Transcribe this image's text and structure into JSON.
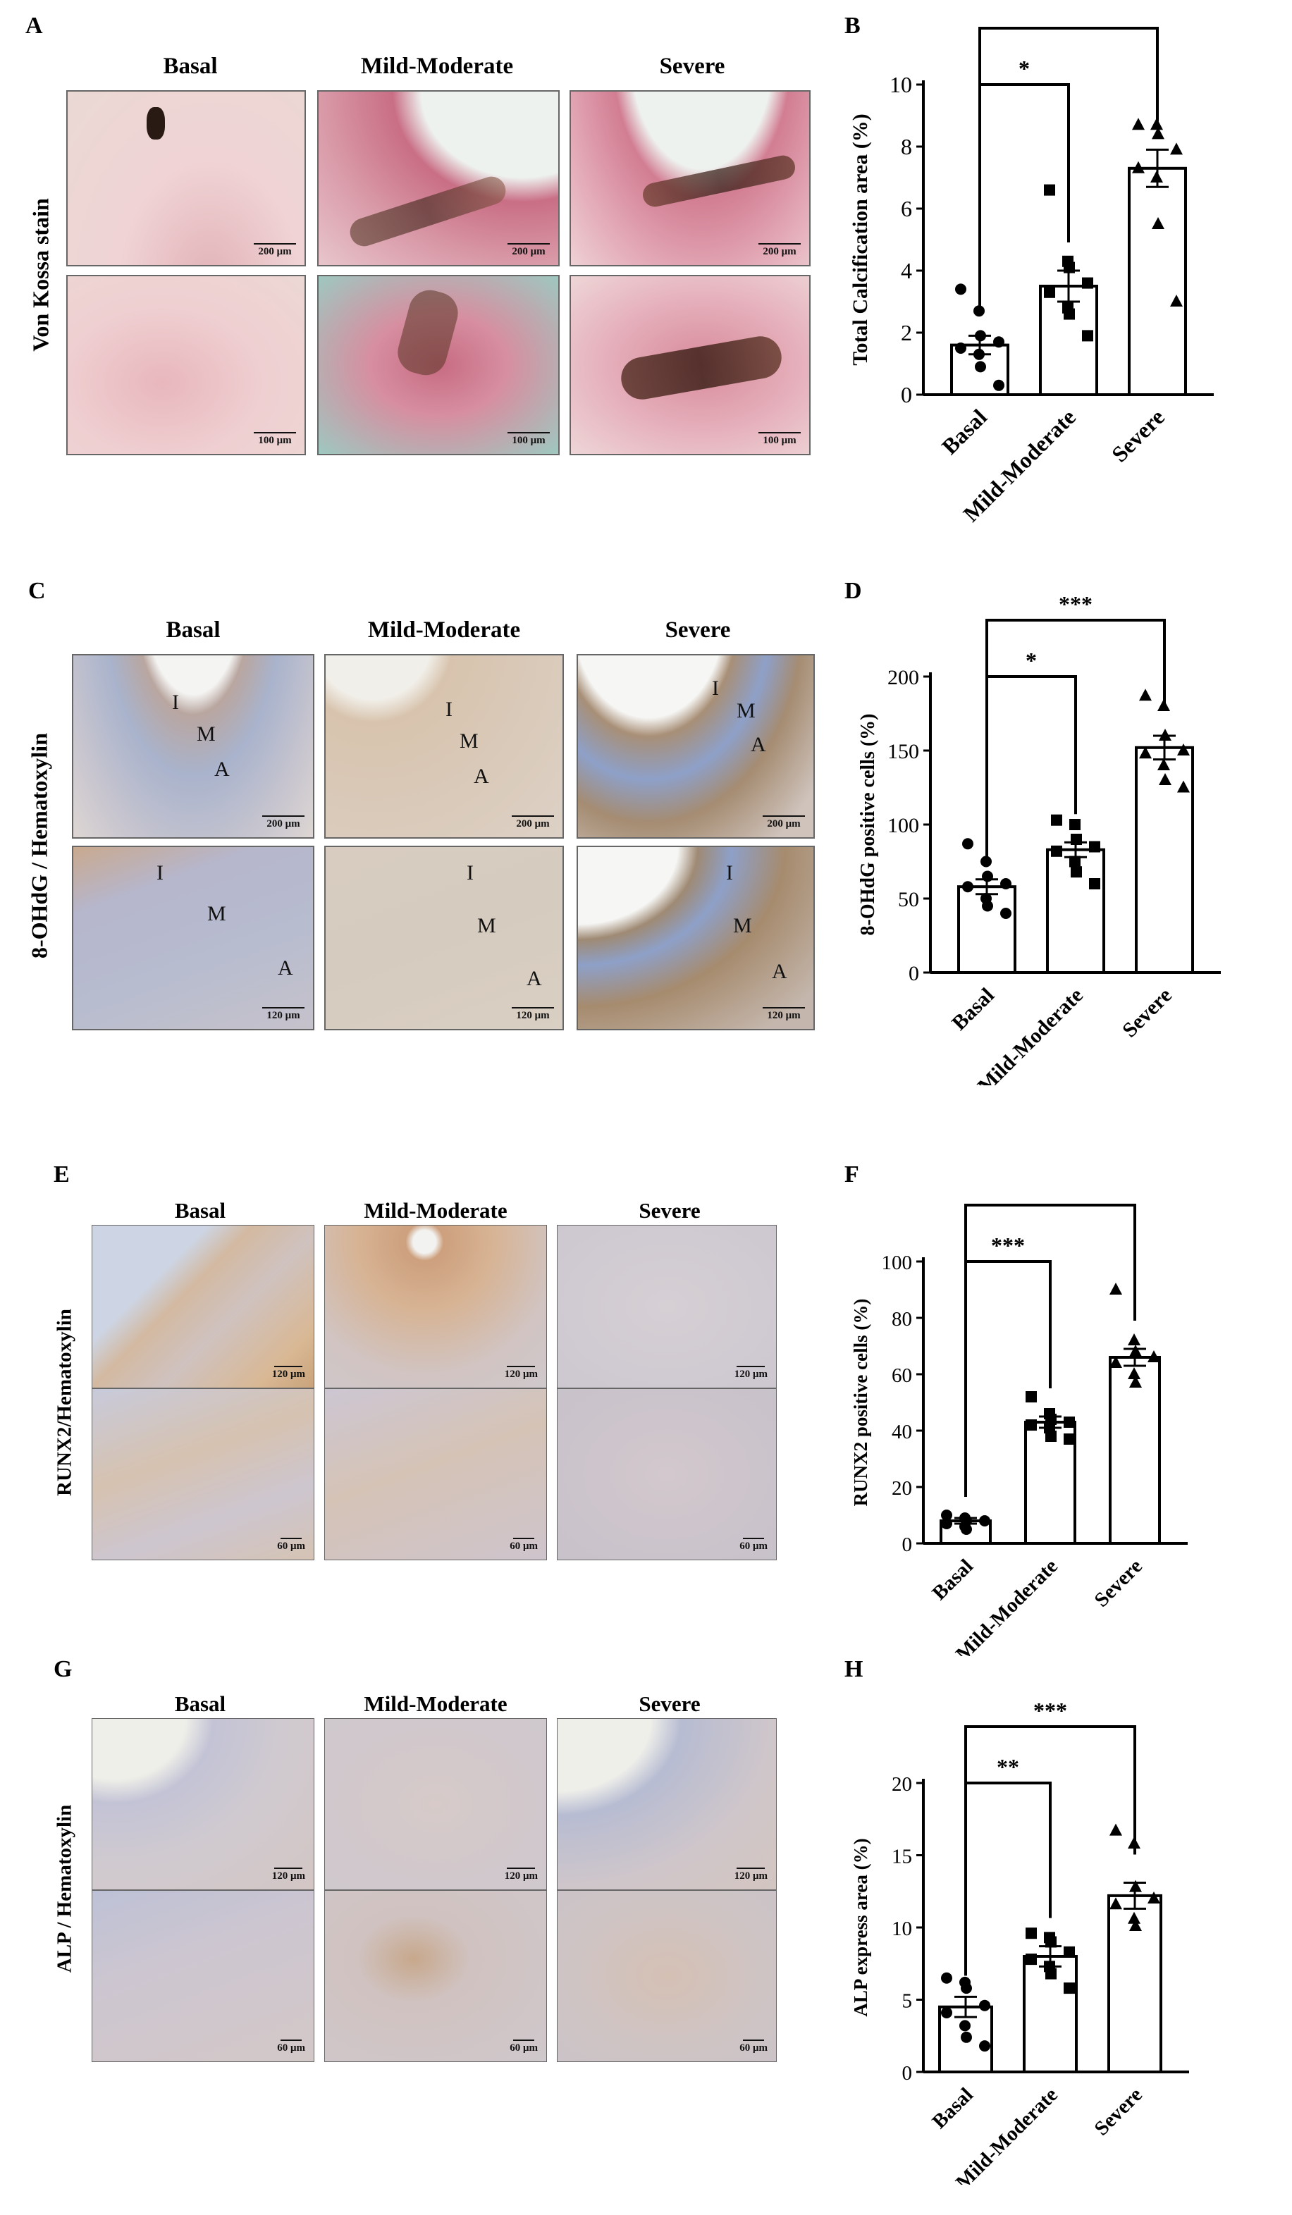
{
  "panel_letters": {
    "A": "A",
    "B": "B",
    "C": "C",
    "D": "D",
    "E": "E",
    "F": "F",
    "G": "G",
    "H": "H"
  },
  "groups": [
    "Basal",
    "Mild-Moderate",
    "Severe"
  ],
  "stain_labels": {
    "a": "Von Kossa stain",
    "c": "8-OHdG / Hematoxylin",
    "e": "RUNX2/Hematoxylin",
    "g": "ALP / Hematoxylin"
  },
  "scale_bars": {
    "a_top": "200 μm",
    "a_bottom": "100 μm",
    "c_top": "200 μm",
    "c_bottom": "120 μm",
    "e_top": "120 μm",
    "e_bottom": "60 μm",
    "g_top": "120 μm",
    "g_bottom": "60 μm"
  },
  "layer_labels": {
    "intima": "I",
    "media": "M",
    "adventitia": "A"
  },
  "colors": {
    "vonkossa_bg": "#e8c2c4",
    "vonkossa_tissue": "#d98a9a",
    "vonkossa_deposit": "#4a2418",
    "ihc_bg": "#d9d4da",
    "ihc_blue": "#8ea0c8",
    "ihc_brown": "#b98a55",
    "lumen": "#f2f4f2"
  },
  "chart_data": [
    {
      "panel": "B",
      "type": "bar",
      "categories": [
        "Basal",
        "Mild-Moderate",
        "Severe"
      ],
      "values": [
        1.6,
        3.5,
        7.3
      ],
      "sem": [
        0.3,
        0.5,
        0.6
      ],
      "ylabel": "Total Calcification area (%)",
      "ylim": [
        0,
        10
      ],
      "yticks": [
        0,
        2,
        4,
        6,
        8,
        10
      ],
      "points": [
        [
          3.4,
          2.7,
          1.9,
          1.7,
          1.5,
          1.3,
          0.9,
          0.3
        ],
        [
          6.6,
          4.3,
          4.1,
          3.6,
          3.3,
          2.8,
          2.6,
          1.9
        ],
        [
          8.7,
          8.7,
          8.4,
          7.9,
          7.3,
          7.0,
          5.5,
          3.0
        ]
      ],
      "markers": [
        "circle",
        "square",
        "triangle"
      ],
      "significance": [
        {
          "from": 0,
          "to": 1,
          "label": "*"
        },
        {
          "from": 0,
          "to": 2,
          "label": "***"
        }
      ]
    },
    {
      "panel": "D",
      "type": "bar",
      "categories": [
        "Basal",
        "Mild-Moderate",
        "Severe"
      ],
      "values": [
        58,
        83,
        152
      ],
      "sem": [
        5,
        5,
        8
      ],
      "ylabel": "8-OHdG positive cells (%)",
      "ylim": [
        0,
        200
      ],
      "yticks": [
        0,
        50,
        100,
        150,
        200
      ],
      "points": [
        [
          87,
          75,
          65,
          60,
          58,
          50,
          45,
          40
        ],
        [
          103,
          100,
          90,
          85,
          82,
          75,
          68,
          60
        ],
        [
          187,
          180,
          160,
          150,
          148,
          140,
          130,
          125
        ]
      ],
      "markers": [
        "circle",
        "square",
        "triangle"
      ],
      "significance": [
        {
          "from": 0,
          "to": 1,
          "label": "*"
        },
        {
          "from": 0,
          "to": 2,
          "label": "***"
        }
      ]
    },
    {
      "panel": "F",
      "type": "bar",
      "categories": [
        "Basal",
        "Mild-Moderate",
        "Severe"
      ],
      "values": [
        8,
        43,
        66
      ],
      "sem": [
        1,
        2,
        3
      ],
      "ylabel": "RUNX2 positive cells (%)",
      "ylim": [
        0,
        100
      ],
      "yticks": [
        0,
        20,
        40,
        60,
        80,
        100
      ],
      "points": [
        [
          10,
          9,
          8,
          8,
          7,
          6,
          5
        ],
        [
          52,
          46,
          44,
          43,
          42,
          41,
          38,
          37
        ],
        [
          90,
          72,
          68,
          66,
          64,
          60,
          57
        ]
      ],
      "markers": [
        "circle",
        "square",
        "triangle"
      ],
      "significance": [
        {
          "from": 0,
          "to": 1,
          "label": "***"
        },
        {
          "from": 0,
          "to": 2,
          "label": "***"
        }
      ]
    },
    {
      "panel": "H",
      "type": "bar",
      "categories": [
        "Basal",
        "Mild-Moderate",
        "Severe"
      ],
      "values": [
        4.5,
        8.0,
        12.2
      ],
      "sem": [
        0.7,
        0.7,
        0.9
      ],
      "ylabel": "ALP express area (%)",
      "ylim": [
        0,
        20
      ],
      "yticks": [
        0,
        5,
        10,
        15,
        20
      ],
      "points": [
        [
          6.5,
          6.2,
          5.8,
          4.6,
          4.1,
          3.2,
          2.4,
          1.8
        ],
        [
          9.6,
          9.3,
          9.0,
          8.3,
          7.8,
          7.3,
          6.8,
          5.8
        ],
        [
          16.7,
          15.8,
          12.8,
          12.0,
          11.6,
          10.6,
          10.1
        ]
      ],
      "markers": [
        "circle",
        "square",
        "triangle"
      ],
      "significance": [
        {
          "from": 0,
          "to": 1,
          "label": "**"
        },
        {
          "from": 0,
          "to": 2,
          "label": "***"
        }
      ]
    }
  ]
}
